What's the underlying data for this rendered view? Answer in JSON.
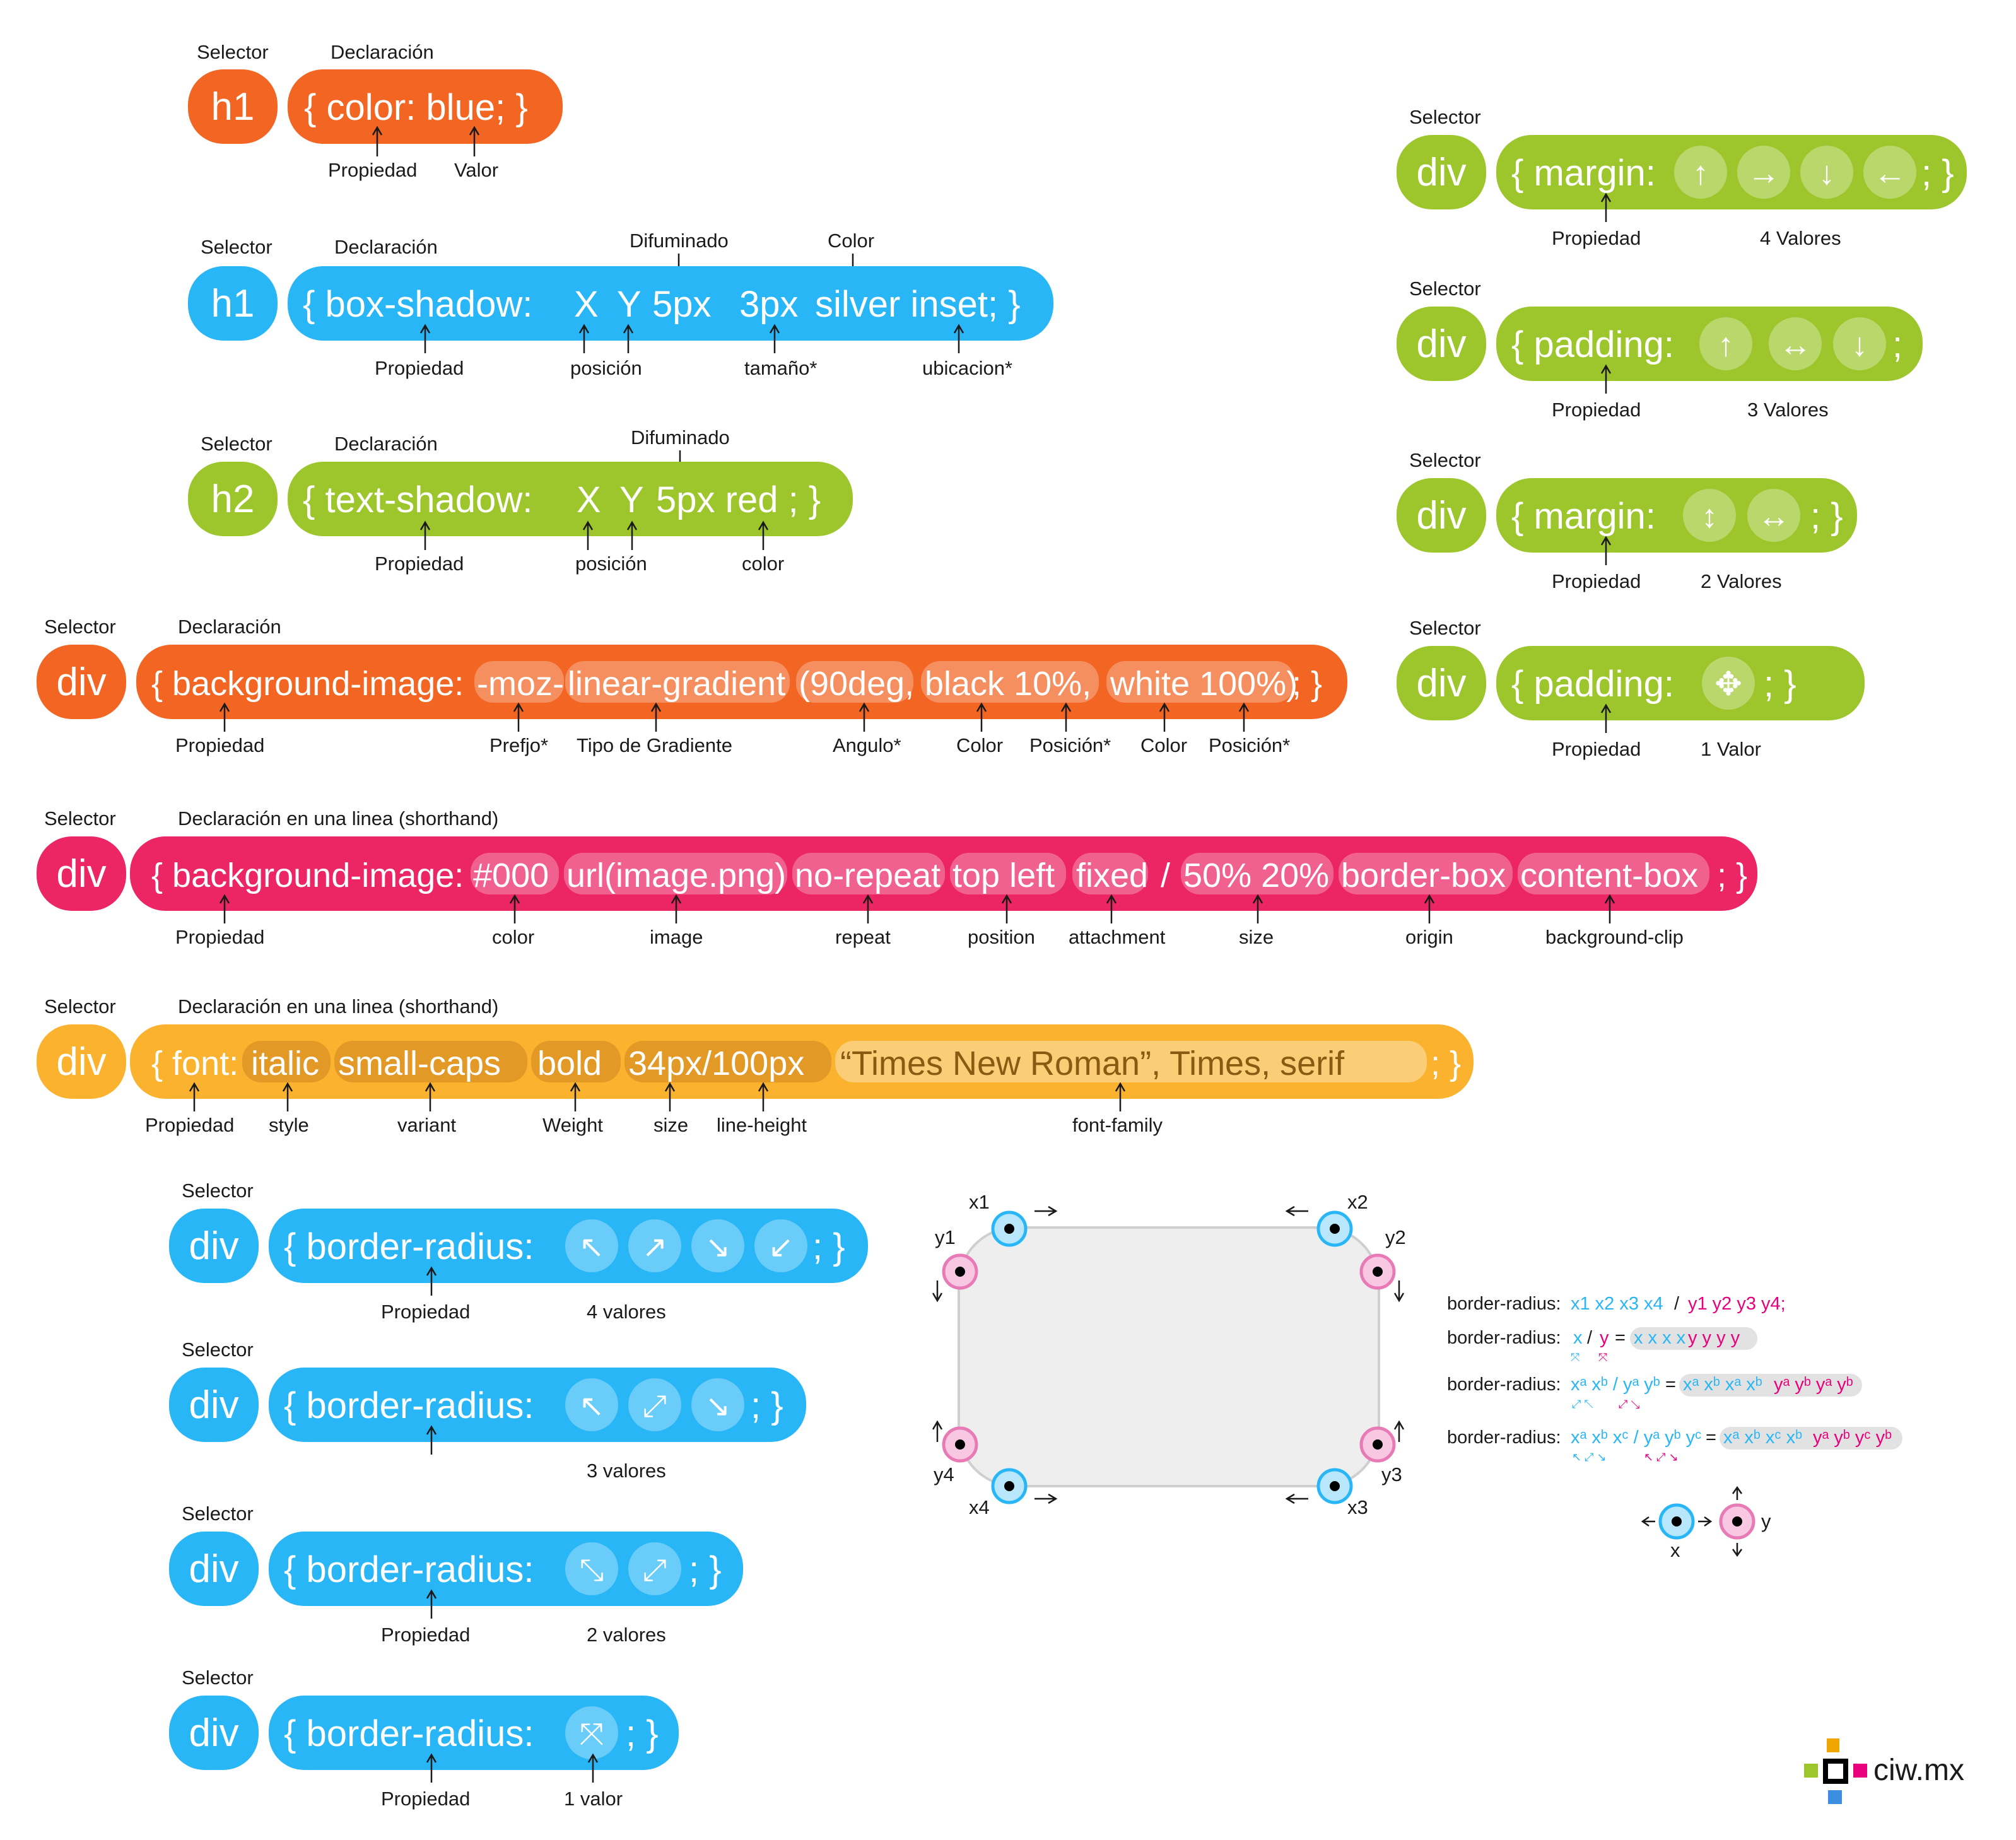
{
  "colors": {
    "orange": "#f26522",
    "blue": "#29b6f6",
    "green": "#9dc62d",
    "pink": "#ec2565",
    "yellow": "#fbb32f",
    "gray_box": "#eeeeee",
    "cyan": "#29b6f6",
    "magenta": "#e8007d"
  },
  "labels": {
    "selector": "Selector",
    "declaracion": "Declaración",
    "propiedad": "Propiedad",
    "valor": "Valor",
    "difuminado": "Difuminado",
    "color_cap": "Color",
    "posicion": "posición",
    "tamano": "tamaño*",
    "ubicacion": "ubicacion*",
    "color_lc": "color",
    "shorthand": "Declaración en una linea (shorthand)"
  },
  "r1": {
    "sel": "h1",
    "decl": "{ color: blue; }"
  },
  "r2": {
    "sel": "h1",
    "open": "{ box-shadow:",
    "x": "X",
    "y": "Y",
    "blur": "5px",
    "size": "3px",
    "rest": "silver inset; }"
  },
  "r3": {
    "sel": "h2",
    "open": "{ text-shadow:",
    "x": "X",
    "y": "Y",
    "rest": "5px red ; }"
  },
  "r4": {
    "sel": "div",
    "open": "{ background-image:",
    "prefix": "-moz-",
    "type": "linear-gradient",
    "angle": "(90deg,",
    "c1": "black 10%,",
    "c2": "white 100%)",
    "close": "; }",
    "labels": [
      "Prefjo*",
      "Tipo de Gradiente",
      "Angulo*",
      "Color",
      "Posición*",
      "Color",
      "Posición*"
    ]
  },
  "r5": {
    "sel": "div",
    "open": "{ background-image:",
    "tokens": [
      "#000",
      "url(image.png)",
      "no-repeat",
      "top left",
      "fixed",
      "/",
      "50% 20%",
      "border-box",
      "content-box"
    ],
    "close": "; }",
    "labels": [
      "color",
      "image",
      "repeat",
      "position",
      "attachment",
      "size",
      "origin",
      "background-clip"
    ]
  },
  "r6": {
    "sel": "div",
    "open": "{ font:",
    "tokens": [
      "italic",
      "small-caps",
      "bold",
      "34px/100px",
      "“Times New Roman”, Times, serif"
    ],
    "close": "; }",
    "labels": [
      "style",
      "variant",
      "Weight",
      "size",
      "line-height",
      "font-family"
    ]
  },
  "right": [
    {
      "sel": "div",
      "prop": "{ margin:",
      "glyphs": [
        "↑",
        "→",
        "↓",
        "←"
      ],
      "close": "; }",
      "count": "4 Valores"
    },
    {
      "sel": "div",
      "prop": "{ padding:",
      "glyphs": [
        "↑",
        "↔",
        "↓"
      ],
      "close": ";",
      "count": "3 Valores"
    },
    {
      "sel": "div",
      "prop": "{ margin:",
      "glyphs": [
        "↕",
        "↔"
      ],
      "close": "; }",
      "count": "2 Valores"
    },
    {
      "sel": "div",
      "prop": "{ padding:",
      "glyphs": [
        "✥"
      ],
      "close": "; }",
      "count": "1 Valor"
    }
  ],
  "br": [
    {
      "sel": "div",
      "prop": "{ border-radius:",
      "glyphs": [
        "↖",
        "↗",
        "↘",
        "↙"
      ],
      "close": "; }",
      "count": "4 valores",
      "propiedad": "Propiedad"
    },
    {
      "sel": "div",
      "prop": "{ border-radius:",
      "glyphs": [
        "↖",
        "⤢",
        "↘"
      ],
      "close": "; }",
      "count": "3 valores",
      "propiedad": ""
    },
    {
      "sel": "div",
      "prop": "{ border-radius:",
      "glyphs": [
        "⤡",
        "⤢"
      ],
      "close": "; }",
      "count": "2 valores",
      "propiedad": "Propiedad"
    },
    {
      "sel": "div",
      "prop": "{ border-radius:",
      "glyphs": [
        "⤧"
      ],
      "close": "; }",
      "count": "1 valor",
      "propiedad": "Propiedad"
    }
  ],
  "corners": {
    "x1": "x1",
    "x2": "x2",
    "x3": "x3",
    "x4": "x4",
    "y1": "y1",
    "y2": "y2",
    "y3": "y3",
    "y4": "y4"
  },
  "formulas": {
    "prefix": "border-radius:",
    "f1x": "x1 x2 x3 x4",
    "f1sep": "/",
    "f1y": "y1 y2 y3 y4;",
    "f2": {
      "x": "x",
      "sep": "/",
      "y": "y",
      "eq": "=",
      "rx": "x x x x",
      "ry": "y y y y"
    },
    "f3": {
      "left": "xᵃ xᵇ / yᵃ yᵇ",
      "eq": "=",
      "rx": "xᵃ xᵇ xᵃ xᵇ",
      "ry": "yᵃ yᵇ yᵃ yᵇ"
    },
    "f4": {
      "left": "xᵃ xᵇ xᶜ / yᵃ yᵇ yᶜ",
      "eq": "=",
      "rx": "xᵃ xᵇ xᶜ xᵇ",
      "ry": "yᵃ yᵇ yᶜ yᵇ"
    }
  },
  "legend": {
    "x": "x",
    "y": "y"
  },
  "brand": {
    "name": "ciw.mx"
  }
}
